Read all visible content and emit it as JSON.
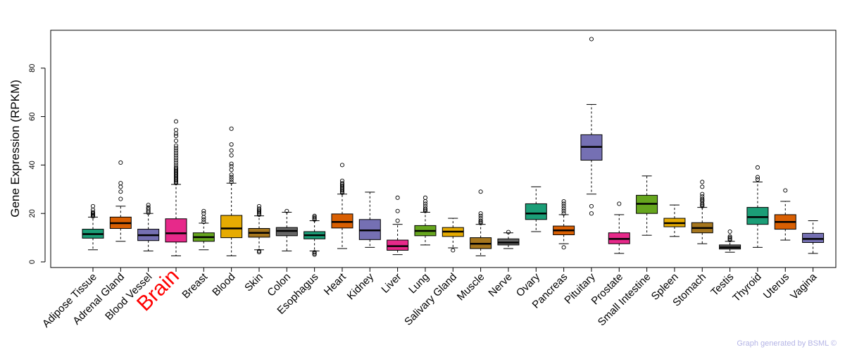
{
  "chart_data": {
    "type": "boxplot",
    "title": "",
    "xlabel": "",
    "ylabel": "Gene Expression (RPKM)",
    "ylim": [
      0,
      95
    ],
    "yticks": [
      0,
      20,
      40,
      60,
      80
    ],
    "highlight": "Brain",
    "highlight_color": "#ff0000",
    "credit": "Graph generated by BSML ©",
    "categories": [
      {
        "name": "Adipose Tissue",
        "color": "#1b9e77",
        "min": 5,
        "q1": 9.8,
        "median": 11.5,
        "q3": 13.5,
        "max": 18.5,
        "outliers": [
          18.8,
          19.2,
          19.6,
          20,
          20.5,
          21.5,
          23
        ]
      },
      {
        "name": "Adrenal Gland",
        "color": "#d95f02",
        "min": 8.5,
        "q1": 13.8,
        "median": 16,
        "q3": 18.5,
        "max": 23,
        "outliers": [
          26,
          29,
          31,
          32.5,
          41
        ]
      },
      {
        "name": "Blood Vessel",
        "color": "#7570b3",
        "min": 4.5,
        "q1": 8.8,
        "median": 11,
        "q3": 13.5,
        "max": 20,
        "outliers": [
          20.3,
          21,
          21.8,
          22.5,
          23.5
        ]
      },
      {
        "name": "Brain",
        "color": "#e7298a",
        "min": 2.5,
        "q1": 8.2,
        "median": 11.8,
        "q3": 17.8,
        "max": 32,
        "outliers": [
          32.5,
          33,
          33.5,
          34,
          34.5,
          35,
          35.5,
          36,
          36.5,
          37,
          37.5,
          38,
          38.5,
          39,
          40,
          41,
          42,
          43,
          44,
          45,
          46,
          47,
          48,
          50,
          52,
          53,
          54.5,
          58
        ]
      },
      {
        "name": "Breast",
        "color": "#66a61e",
        "min": 5,
        "q1": 8.5,
        "median": 10.2,
        "q3": 12,
        "max": 16,
        "outliers": [
          16.5,
          17.5,
          18.5,
          20,
          21
        ]
      },
      {
        "name": "Blood",
        "color": "#e6ab02",
        "min": 2.5,
        "q1": 10,
        "median": 13.8,
        "q3": 19.2,
        "max": 32.5,
        "outliers": [
          33,
          34,
          35,
          36,
          38,
          39.5,
          40.5,
          44,
          46,
          48.5,
          55
        ]
      },
      {
        "name": "Skin",
        "color": "#a6761d",
        "min": 5,
        "q1": 10.2,
        "median": 12,
        "q3": 13.8,
        "max": 19,
        "outliers": [
          4,
          4.5,
          19.5,
          20,
          20.5,
          21,
          21.5,
          22,
          23
        ]
      },
      {
        "name": "Colon",
        "color": "#666666",
        "min": 4.5,
        "q1": 10.8,
        "median": 12.8,
        "q3": 14.2,
        "max": 20.5,
        "outliers": [
          21
        ]
      },
      {
        "name": "Esophagus",
        "color": "#1b9e77",
        "min": 4.5,
        "q1": 9.5,
        "median": 11,
        "q3": 12.5,
        "max": 17,
        "outliers": [
          3,
          3.5,
          4,
          17.5,
          18,
          18.5,
          19
        ]
      },
      {
        "name": "Heart",
        "color": "#d95f02",
        "min": 5.5,
        "q1": 14,
        "median": 16.5,
        "q3": 19.8,
        "max": 28,
        "outliers": [
          28.5,
          29,
          29.5,
          30,
          30.5,
          31,
          31.5,
          32,
          32.5,
          33.5,
          40
        ]
      },
      {
        "name": "Kidney",
        "color": "#7570b3",
        "min": 6,
        "q1": 9.2,
        "median": 13,
        "q3": 17.5,
        "max": 28.8,
        "outliers": []
      },
      {
        "name": "Liver",
        "color": "#e7298a",
        "min": 3,
        "q1": 4.8,
        "median": 6.5,
        "q3": 9,
        "max": 15.5,
        "outliers": [
          17,
          21,
          26.5
        ]
      },
      {
        "name": "Lung",
        "color": "#66a61e",
        "min": 7,
        "q1": 10.8,
        "median": 12.8,
        "q3": 15,
        "max": 20.5,
        "outliers": [
          21,
          21.5,
          22,
          23,
          24,
          25,
          26.5
        ]
      },
      {
        "name": "Salivary Gland",
        "color": "#e6ab02",
        "min": 5.8,
        "q1": 10.5,
        "median": 12.5,
        "q3": 14.2,
        "max": 18,
        "outliers": [
          4.8
        ]
      },
      {
        "name": "Muscle",
        "color": "#a6761d",
        "min": 2.5,
        "q1": 5.5,
        "median": 7.5,
        "q3": 10,
        "max": 15.5,
        "outliers": [
          16,
          16.5,
          17,
          18,
          19,
          20,
          29
        ]
      },
      {
        "name": "Nerve",
        "color": "#666666",
        "min": 5.5,
        "q1": 7,
        "median": 8,
        "q3": 9.5,
        "max": 12,
        "outliers": [
          12.3
        ]
      },
      {
        "name": "Ovary",
        "color": "#1b9e77",
        "min": 12.5,
        "q1": 17.5,
        "median": 20,
        "q3": 24,
        "max": 31,
        "outliers": []
      },
      {
        "name": "Pancreas",
        "color": "#d95f02",
        "min": 7.5,
        "q1": 11.2,
        "median": 13,
        "q3": 14.8,
        "max": 19.5,
        "outliers": [
          6,
          20,
          21,
          22,
          23,
          24,
          25
        ]
      },
      {
        "name": "Pituitary",
        "color": "#7570b3",
        "min": 28,
        "q1": 42,
        "median": 47.5,
        "q3": 52.5,
        "max": 65,
        "outliers": [
          20,
          23,
          92
        ]
      },
      {
        "name": "Prostate",
        "color": "#e7298a",
        "min": 3.5,
        "q1": 7.5,
        "median": 9.5,
        "q3": 12,
        "max": 19.5,
        "outliers": [
          24
        ]
      },
      {
        "name": "Small Intestine",
        "color": "#66a61e",
        "min": 11,
        "q1": 20,
        "median": 24,
        "q3": 27.5,
        "max": 35.5,
        "outliers": []
      },
      {
        "name": "Spleen",
        "color": "#e6ab02",
        "min": 10.5,
        "q1": 14.5,
        "median": 16,
        "q3": 18,
        "max": 23.5,
        "outliers": []
      },
      {
        "name": "Stomach",
        "color": "#a6761d",
        "min": 7.5,
        "q1": 12,
        "median": 14,
        "q3": 16.2,
        "max": 22.5,
        "outliers": [
          23,
          23.5,
          24,
          25,
          25.5,
          26,
          27,
          28,
          31,
          33
        ]
      },
      {
        "name": "Testis",
        "color": "#666666",
        "min": 4,
        "q1": 5.3,
        "median": 6,
        "q3": 7,
        "max": 8.5,
        "outliers": [
          9,
          9.5,
          10,
          10.5,
          12.5
        ]
      },
      {
        "name": "Thyroid",
        "color": "#1b9e77",
        "min": 6,
        "q1": 15.5,
        "median": 18.5,
        "q3": 22.5,
        "max": 33,
        "outliers": [
          34,
          35,
          39
        ]
      },
      {
        "name": "Uterus",
        "color": "#d95f02",
        "min": 9,
        "q1": 13.5,
        "median": 16.5,
        "q3": 19.5,
        "max": 25,
        "outliers": [
          29.5
        ]
      },
      {
        "name": "Vagina",
        "color": "#7570b3",
        "min": 3.5,
        "q1": 8,
        "median": 9.5,
        "q3": 11.8,
        "max": 17,
        "outliers": []
      }
    ]
  }
}
